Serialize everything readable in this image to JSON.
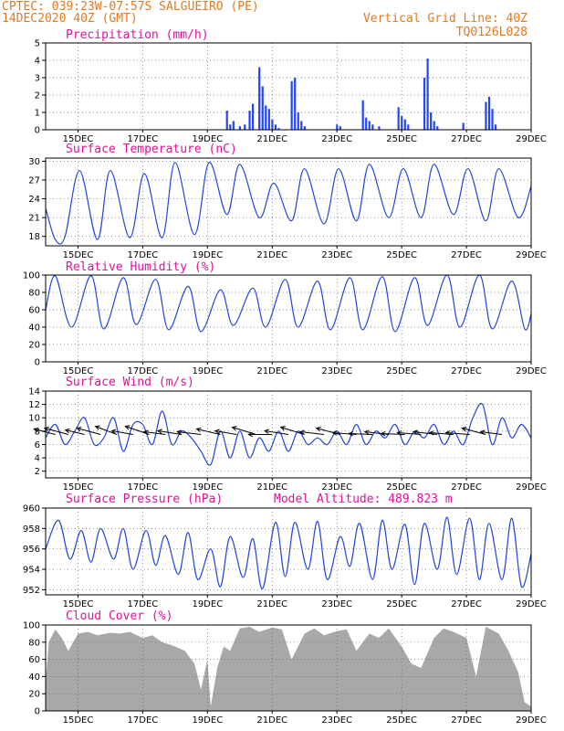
{
  "header": {
    "line1_left": "CPTEC:  039:23W-07:57S  SALGUEIRO (PE)",
    "line2_left": "14DEC2020 40Z (GMT)",
    "line1_right": "Vertical Grid Line: 40Z",
    "line2_right": "TQ0126L028"
  },
  "colors": {
    "line": "#2244dd",
    "bar": "#2244ff",
    "cloud": "#a8a8a8",
    "title": "#e0129b",
    "header": "#e07a1f"
  },
  "x_axis": {
    "start_day": 14,
    "end_day": 29,
    "ticks": [
      {
        "day": 15,
        "label": "15DEC"
      },
      {
        "day": 17,
        "label": "17DEC"
      },
      {
        "day": 19,
        "label": "19DEC"
      },
      {
        "day": 21,
        "label": "21DEC"
      },
      {
        "day": 23,
        "label": "23DEC"
      },
      {
        "day": 25,
        "label": "25DEC"
      },
      {
        "day": 27,
        "label": "27DEC"
      },
      {
        "day": 29,
        "label": "29DEC"
      }
    ]
  },
  "chart_data": [
    {
      "type": "bar",
      "title": "Precipitation (mm/h)",
      "ylim": [
        0,
        5
      ],
      "yticks": [
        0,
        1,
        2,
        3,
        4,
        5
      ],
      "series": [
        {
          "x": [
            19.6,
            19.7,
            19.8,
            20.0,
            20.15,
            20.3,
            20.4,
            20.6,
            20.7,
            20.8,
            20.9,
            21.0,
            21.1,
            21.2,
            21.6,
            21.7,
            21.8,
            21.9,
            22.0,
            23.0,
            23.1,
            23.8,
            23.9,
            24.0,
            24.1,
            24.3,
            24.9,
            25.0,
            25.1,
            25.2,
            25.7,
            25.8,
            25.9,
            26.0,
            26.1,
            26.9,
            27.6,
            27.7,
            27.8,
            27.9
          ],
          "values": [
            1.1,
            0.3,
            0.5,
            0.2,
            0.3,
            1.1,
            1.5,
            3.6,
            2.5,
            1.4,
            1.2,
            0.6,
            0.3,
            0.1,
            2.8,
            3.0,
            1.0,
            0.5,
            0.2,
            0.3,
            0.2,
            1.7,
            0.7,
            0.5,
            0.3,
            0.2,
            1.3,
            0.8,
            0.6,
            0.3,
            3.0,
            4.1,
            1.0,
            0.5,
            0.2,
            0.4,
            1.6,
            1.9,
            1.2,
            0.3
          ]
        }
      ]
    },
    {
      "type": "line",
      "title": "Surface Temperature (nC)",
      "ylim": [
        16.5,
        30.5
      ],
      "yticks": [
        18,
        21,
        24,
        27,
        30
      ],
      "series": [
        {
          "x": [
            14.0,
            14.3,
            14.6,
            15.05,
            15.6,
            16.0,
            16.6,
            17.05,
            17.6,
            18.0,
            18.6,
            19.05,
            19.6,
            20.0,
            20.6,
            21.05,
            21.6,
            22.0,
            22.6,
            23.05,
            23.6,
            24.0,
            24.6,
            25.05,
            25.6,
            26.0,
            26.6,
            27.05,
            27.6,
            28.0,
            28.6,
            29.0
          ],
          "values": [
            22.5,
            17.5,
            18.0,
            28.5,
            17.5,
            28.5,
            17.8,
            28.0,
            17.8,
            29.8,
            18.3,
            29.8,
            21.5,
            29.5,
            21.0,
            26.5,
            20.5,
            28.8,
            20.0,
            28.8,
            20.5,
            29.5,
            21.0,
            28.8,
            21.0,
            29.5,
            21.5,
            28.8,
            20.5,
            28.8,
            21.0,
            26.0
          ]
        }
      ]
    },
    {
      "type": "line",
      "title": "Relative Humidity (%)",
      "ylim": [
        0,
        100
      ],
      "yticks": [
        0,
        20,
        40,
        60,
        80,
        100
      ],
      "series": [
        {
          "x": [
            14.0,
            14.3,
            14.8,
            15.4,
            15.8,
            16.4,
            16.8,
            17.4,
            17.8,
            18.4,
            18.8,
            19.4,
            19.8,
            20.4,
            20.8,
            21.4,
            21.8,
            22.4,
            22.8,
            23.4,
            23.8,
            24.4,
            24.8,
            25.4,
            25.8,
            26.4,
            26.8,
            27.4,
            27.8,
            28.4,
            28.8,
            29.0
          ],
          "values": [
            60,
            99,
            40,
            99,
            38,
            97,
            43,
            95,
            37,
            87,
            35,
            83,
            42,
            85,
            40,
            95,
            40,
            93,
            37,
            97,
            37,
            98,
            35,
            97,
            42,
            100,
            40,
            100,
            38,
            93,
            38,
            55
          ]
        }
      ]
    },
    {
      "type": "line",
      "title": "Surface Wind (m/s)",
      "ylim": [
        1,
        14
      ],
      "yticks": [
        2,
        4,
        6,
        8,
        10,
        12,
        14
      ],
      "series": [
        {
          "x": [
            14.0,
            14.3,
            14.6,
            14.9,
            15.2,
            15.5,
            15.8,
            16.1,
            16.4,
            16.7,
            17.0,
            17.3,
            17.6,
            17.9,
            18.2,
            18.5,
            18.8,
            19.1,
            19.4,
            19.7,
            20.0,
            20.3,
            20.6,
            20.9,
            21.2,
            21.5,
            21.8,
            22.1,
            22.4,
            22.7,
            23.0,
            23.3,
            23.6,
            23.9,
            24.2,
            24.5,
            24.8,
            25.1,
            25.4,
            25.7,
            26.0,
            26.3,
            26.6,
            26.9,
            27.2,
            27.5,
            27.8,
            28.1,
            28.4,
            28.7,
            29.0
          ],
          "values": [
            7,
            9,
            6,
            8,
            10,
            6,
            7,
            10,
            5,
            9,
            9,
            6,
            11,
            6,
            8,
            7,
            5,
            3,
            8,
            4,
            8,
            4,
            7,
            5,
            8,
            5,
            8,
            6,
            7,
            6,
            8,
            6,
            9,
            6,
            8,
            7,
            9,
            6,
            8,
            7,
            9,
            6,
            8,
            6,
            10,
            12,
            6,
            10,
            7,
            9,
            7
          ]
        }
      ],
      "vectors": [
        {
          "day": 14.3,
          "dx": -0.9,
          "dy": -0.6
        },
        {
          "day": 14.7,
          "dx": -1.0,
          "dy": -0.7
        },
        {
          "day": 15.2,
          "dx": -0.8,
          "dy": -0.5
        },
        {
          "day": 15.7,
          "dx": -1.0,
          "dy": -0.7
        },
        {
          "day": 16.2,
          "dx": -0.9,
          "dy": -0.9
        },
        {
          "day": 16.7,
          "dx": -0.9,
          "dy": -0.4
        },
        {
          "day": 17.2,
          "dx": -1.0,
          "dy": -0.9
        },
        {
          "day": 17.7,
          "dx": -0.9,
          "dy": -0.3
        },
        {
          "day": 18.2,
          "dx": -1.0,
          "dy": -0.4
        },
        {
          "day": 18.8,
          "dx": -1.0,
          "dy": -0.3
        },
        {
          "day": 19.4,
          "dx": -1.0,
          "dy": -0.6
        },
        {
          "day": 19.9,
          "dx": -0.9,
          "dy": -0.4
        },
        {
          "day": 20.5,
          "dx": -1.0,
          "dy": -0.8
        },
        {
          "day": 21.0,
          "dx": -1.0,
          "dy": 0.0
        },
        {
          "day": 21.5,
          "dx": -1.0,
          "dy": -0.4
        },
        {
          "day": 22.0,
          "dx": -1.0,
          "dy": -0.8
        },
        {
          "day": 22.6,
          "dx": -1.0,
          "dy": -0.3
        },
        {
          "day": 23.1,
          "dx": -1.0,
          "dy": -0.7
        },
        {
          "day": 23.6,
          "dx": -1.0,
          "dy": -0.2
        },
        {
          "day": 24.1,
          "dx": -1.0,
          "dy": -0.1
        },
        {
          "day": 24.6,
          "dx": -1.0,
          "dy": -0.3
        },
        {
          "day": 25.1,
          "dx": -1.0,
          "dy": -0.1
        },
        {
          "day": 25.6,
          "dx": -1.0,
          "dy": -0.2
        },
        {
          "day": 26.1,
          "dx": -1.0,
          "dy": -0.3
        },
        {
          "day": 26.6,
          "dx": -1.0,
          "dy": -0.2
        },
        {
          "day": 27.1,
          "dx": -1.0,
          "dy": -0.2
        },
        {
          "day": 27.6,
          "dx": -1.0,
          "dy": -0.7
        },
        {
          "day": 28.1,
          "dx": -0.9,
          "dy": -0.3
        }
      ]
    },
    {
      "type": "line",
      "title": "Surface Pressure (hPa)",
      "annotation": "Model Altitude: 489.823 m",
      "ylim": [
        951.5,
        960
      ],
      "yticks": [
        952,
        954,
        956,
        958,
        960
      ],
      "series": [
        {
          "x": [
            14.0,
            14.4,
            14.75,
            15.1,
            15.4,
            15.7,
            16.1,
            16.4,
            16.7,
            17.1,
            17.4,
            17.7,
            18.1,
            18.4,
            18.7,
            19.1,
            19.4,
            19.7,
            20.1,
            20.4,
            20.7,
            21.1,
            21.4,
            21.7,
            22.1,
            22.4,
            22.7,
            23.1,
            23.4,
            23.7,
            24.1,
            24.4,
            24.7,
            25.1,
            25.4,
            25.7,
            26.1,
            26.4,
            26.7,
            27.1,
            27.4,
            27.7,
            28.1,
            28.4,
            28.7,
            29.0
          ],
          "values": [
            956.0,
            958.8,
            955.0,
            957.8,
            954.7,
            958.0,
            955.0,
            958.0,
            954.0,
            957.8,
            954.4,
            957.3,
            953.5,
            957.6,
            953.0,
            956.0,
            952.3,
            957.2,
            953.2,
            957.0,
            952.1,
            958.6,
            953.3,
            958.6,
            954.0,
            958.7,
            953.0,
            957.2,
            954.3,
            958.5,
            953.0,
            958.8,
            954.0,
            958.4,
            952.5,
            958.5,
            954.0,
            959.1,
            953.5,
            959.0,
            953.0,
            958.5,
            953.0,
            959.0,
            952.3,
            955.5
          ]
        }
      ]
    },
    {
      "type": "area",
      "title": "Cloud Cover (%)",
      "ylim": [
        0,
        100
      ],
      "yticks": [
        0,
        20,
        40,
        60,
        80,
        100
      ],
      "series": [
        {
          "x": [
            14.0,
            14.1,
            14.3,
            14.5,
            14.7,
            15.0,
            15.3,
            15.6,
            16.0,
            16.3,
            16.6,
            17.0,
            17.3,
            17.6,
            18.0,
            18.3,
            18.6,
            18.8,
            19.0,
            19.1,
            19.3,
            19.5,
            19.7,
            20.0,
            20.3,
            20.6,
            21.0,
            21.3,
            21.6,
            22.0,
            22.3,
            22.6,
            23.0,
            23.3,
            23.6,
            24.0,
            24.3,
            24.6,
            25.0,
            25.3,
            25.6,
            26.0,
            26.3,
            26.6,
            27.0,
            27.3,
            27.6,
            28.0,
            28.3,
            28.6,
            28.8,
            29.0
          ],
          "values": [
            35,
            80,
            95,
            85,
            70,
            90,
            92,
            88,
            91,
            90,
            92,
            85,
            88,
            80,
            75,
            70,
            55,
            25,
            60,
            5,
            50,
            75,
            70,
            96,
            98,
            92,
            97,
            95,
            60,
            90,
            96,
            88,
            93,
            95,
            70,
            90,
            85,
            96,
            75,
            55,
            50,
            85,
            96,
            92,
            85,
            40,
            98,
            90,
            70,
            45,
            10,
            5
          ]
        }
      ]
    }
  ]
}
